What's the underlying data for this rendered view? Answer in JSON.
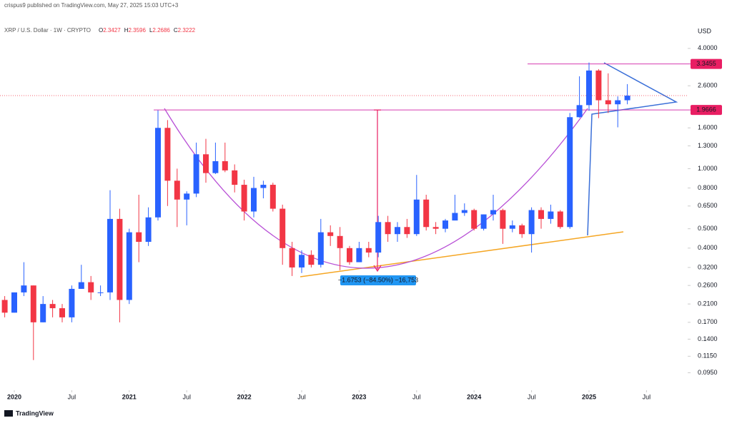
{
  "chart_data": {
    "type": "candlestick",
    "publisher": "crispus9 published on TradingView.com, May 27, 2025 15:03 UTC+3",
    "title": "XRP / U.S. Dollar · 1W · CRYPTO",
    "ohlc": [
      {
        "label": "O",
        "value": 2.3427
      },
      {
        "label": "H",
        "value": 2.3596
      },
      {
        "label": "L",
        "value": 2.2686
      },
      {
        "label": "C",
        "value": 2.3222
      }
    ],
    "currency": "USD",
    "brand": "TradingView",
    "log_scale": true,
    "up_color": "#2962ff",
    "down_color": "#f23645",
    "x": [
      "2019-11",
      "2019-12",
      "2020-01",
      "2020-02",
      "2020-03",
      "2020-04",
      "2020-05",
      "2020-06",
      "2020-07",
      "2020-08",
      "2020-09",
      "2020-10",
      "2020-11",
      "2020-12",
      "2021-01",
      "2021-02",
      "2021-03",
      "2021-04",
      "2021-05",
      "2021-06",
      "2021-07",
      "2021-08",
      "2021-09",
      "2021-10",
      "2021-11",
      "2021-12",
      "2022-01",
      "2022-02",
      "2022-03",
      "2022-04",
      "2022-05",
      "2022-06",
      "2022-07",
      "2022-08",
      "2022-09",
      "2022-10",
      "2022-11",
      "2022-12",
      "2023-01",
      "2023-02",
      "2023-03",
      "2023-04",
      "2023-05",
      "2023-06",
      "2023-07",
      "2023-08",
      "2023-09",
      "2023-10",
      "2023-11",
      "2023-12",
      "2024-01",
      "2024-02",
      "2024-03",
      "2024-04",
      "2024-05",
      "2024-06",
      "2024-07",
      "2024-08",
      "2024-09",
      "2024-10",
      "2024-11",
      "2024-12",
      "2025-01",
      "2025-02",
      "2025-03",
      "2025-04",
      "2025-05"
    ],
    "candles": [
      [
        0.3,
        0.31,
        0.21,
        0.22
      ],
      [
        0.22,
        0.23,
        0.18,
        0.19
      ],
      [
        0.19,
        0.24,
        0.19,
        0.24
      ],
      [
        0.24,
        0.34,
        0.23,
        0.26
      ],
      [
        0.26,
        0.26,
        0.11,
        0.17
      ],
      [
        0.17,
        0.23,
        0.17,
        0.21
      ],
      [
        0.21,
        0.22,
        0.18,
        0.2
      ],
      [
        0.2,
        0.21,
        0.17,
        0.18
      ],
      [
        0.18,
        0.26,
        0.17,
        0.25
      ],
      [
        0.25,
        0.33,
        0.25,
        0.27
      ],
      [
        0.27,
        0.29,
        0.22,
        0.24
      ],
      [
        0.24,
        0.26,
        0.23,
        0.24
      ],
      [
        0.24,
        0.78,
        0.22,
        0.56
      ],
      [
        0.56,
        0.63,
        0.17,
        0.22
      ],
      [
        0.22,
        0.5,
        0.21,
        0.48
      ],
      [
        0.48,
        0.74,
        0.34,
        0.43
      ],
      [
        0.43,
        0.64,
        0.41,
        0.57
      ],
      [
        0.57,
        1.96,
        0.55,
        1.6
      ],
      [
        1.6,
        1.75,
        0.65,
        0.87
      ],
      [
        0.87,
        1.0,
        0.51,
        0.7
      ],
      [
        0.7,
        0.77,
        0.52,
        0.75
      ],
      [
        0.75,
        1.35,
        0.72,
        1.18
      ],
      [
        1.18,
        1.41,
        0.85,
        0.95
      ],
      [
        0.95,
        1.35,
        0.94,
        1.09
      ],
      [
        1.09,
        1.35,
        0.96,
        0.98
      ],
      [
        0.98,
        1.05,
        0.76,
        0.83
      ],
      [
        0.83,
        0.88,
        0.55,
        0.61
      ],
      [
        0.61,
        0.91,
        0.57,
        0.8
      ],
      [
        0.8,
        0.87,
        0.71,
        0.83
      ],
      [
        0.83,
        0.85,
        0.61,
        0.63
      ],
      [
        0.63,
        0.66,
        0.33,
        0.4
      ],
      [
        0.4,
        0.43,
        0.29,
        0.32
      ],
      [
        0.32,
        0.39,
        0.3,
        0.37
      ],
      [
        0.37,
        0.39,
        0.32,
        0.33
      ],
      [
        0.33,
        0.56,
        0.32,
        0.48
      ],
      [
        0.48,
        0.52,
        0.41,
        0.46
      ],
      [
        0.46,
        0.51,
        0.31,
        0.4
      ],
      [
        0.4,
        0.41,
        0.33,
        0.34
      ],
      [
        0.34,
        0.43,
        0.34,
        0.4
      ],
      [
        0.4,
        0.43,
        0.36,
        0.38
      ],
      [
        0.38,
        0.58,
        0.36,
        0.54
      ],
      [
        0.54,
        0.58,
        0.43,
        0.47
      ],
      [
        0.47,
        0.54,
        0.43,
        0.51
      ],
      [
        0.51,
        0.56,
        0.45,
        0.47
      ],
      [
        0.47,
        0.93,
        0.46,
        0.7
      ],
      [
        0.7,
        0.74,
        0.49,
        0.51
      ],
      [
        0.51,
        0.54,
        0.47,
        0.5
      ],
      [
        0.5,
        0.56,
        0.48,
        0.55
      ],
      [
        0.55,
        0.74,
        0.55,
        0.6
      ],
      [
        0.6,
        0.67,
        0.58,
        0.62
      ],
      [
        0.62,
        0.63,
        0.49,
        0.5
      ],
      [
        0.5,
        0.59,
        0.49,
        0.59
      ],
      [
        0.59,
        0.74,
        0.55,
        0.62
      ],
      [
        0.62,
        0.63,
        0.42,
        0.5
      ],
      [
        0.5,
        0.55,
        0.48,
        0.52
      ],
      [
        0.52,
        0.53,
        0.45,
        0.47
      ],
      [
        0.47,
        0.64,
        0.38,
        0.62
      ],
      [
        0.62,
        0.64,
        0.5,
        0.56
      ],
      [
        0.56,
        0.66,
        0.53,
        0.61
      ],
      [
        0.61,
        0.62,
        0.5,
        0.51
      ],
      [
        0.51,
        1.9,
        0.5,
        1.81
      ],
      [
        1.81,
        2.9,
        1.8,
        2.08
      ],
      [
        2.08,
        3.4,
        1.95,
        3.1
      ],
      [
        3.1,
        3.15,
        1.79,
        2.2
      ],
      [
        2.2,
        3.0,
        1.9,
        2.1
      ],
      [
        2.1,
        2.3,
        1.61,
        2.2
      ],
      [
        2.2,
        2.65,
        2.1,
        2.32
      ]
    ],
    "xticks": [
      {
        "value": "2020-01",
        "label": "2020"
      },
      {
        "value": "2020-07",
        "label": "Jul"
      },
      {
        "value": "2021-01",
        "label": "2021"
      },
      {
        "value": "2021-07",
        "label": "Jul"
      },
      {
        "value": "2022-01",
        "label": "2022"
      },
      {
        "value": "2022-07",
        "label": "Jul"
      },
      {
        "value": "2023-01",
        "label": "2023"
      },
      {
        "value": "2023-07",
        "label": "Jul"
      },
      {
        "value": "2024-01",
        "label": "2024"
      },
      {
        "value": "2024-07",
        "label": "Jul"
      },
      {
        "value": "2025-01",
        "label": "2025"
      },
      {
        "value": "2025-07",
        "label": "Jul"
      }
    ],
    "ylim": [
      0.079,
      5.03
    ],
    "yticks": [
      {
        "value": 4,
        "label": "4.0000"
      },
      {
        "value": 2.6,
        "label": "2.6000"
      },
      {
        "value": 1.6,
        "label": "1.6000"
      },
      {
        "value": 1.3,
        "label": "1.3000"
      },
      {
        "value": 1,
        "label": "1.0000"
      },
      {
        "value": 0.8,
        "label": "0.8000"
      },
      {
        "value": 0.65,
        "label": "0.6500"
      },
      {
        "value": 0.5,
        "label": "0.5000"
      },
      {
        "value": 0.4,
        "label": "0.4000"
      },
      {
        "value": 0.32,
        "label": "0.3200"
      },
      {
        "value": 0.26,
        "label": "0.2600"
      },
      {
        "value": 0.21,
        "label": "0.2100"
      },
      {
        "value": 0.17,
        "label": "0.1700"
      },
      {
        "value": 0.14,
        "label": "0.1400"
      },
      {
        "value": 0.115,
        "label": "0.1150"
      },
      {
        "value": 0.095,
        "label": "0.0950"
      }
    ],
    "levels": [
      {
        "value": 3.3455,
        "label": "3.3455"
      },
      {
        "value": 1.9666,
        "label": "1.9666"
      }
    ],
    "measure_label": "−1.6753 (−84.50%) −16,753"
  }
}
